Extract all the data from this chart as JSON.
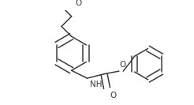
{
  "line_color": "#3a3a3a",
  "line_width": 1.1,
  "text_color": "#3a3a3a",
  "font_size": 7.0,
  "figsize": [
    2.46,
    1.33
  ],
  "dpi": 100,
  "xlim": [
    0,
    2.46
  ],
  "ylim": [
    0,
    1.33
  ]
}
